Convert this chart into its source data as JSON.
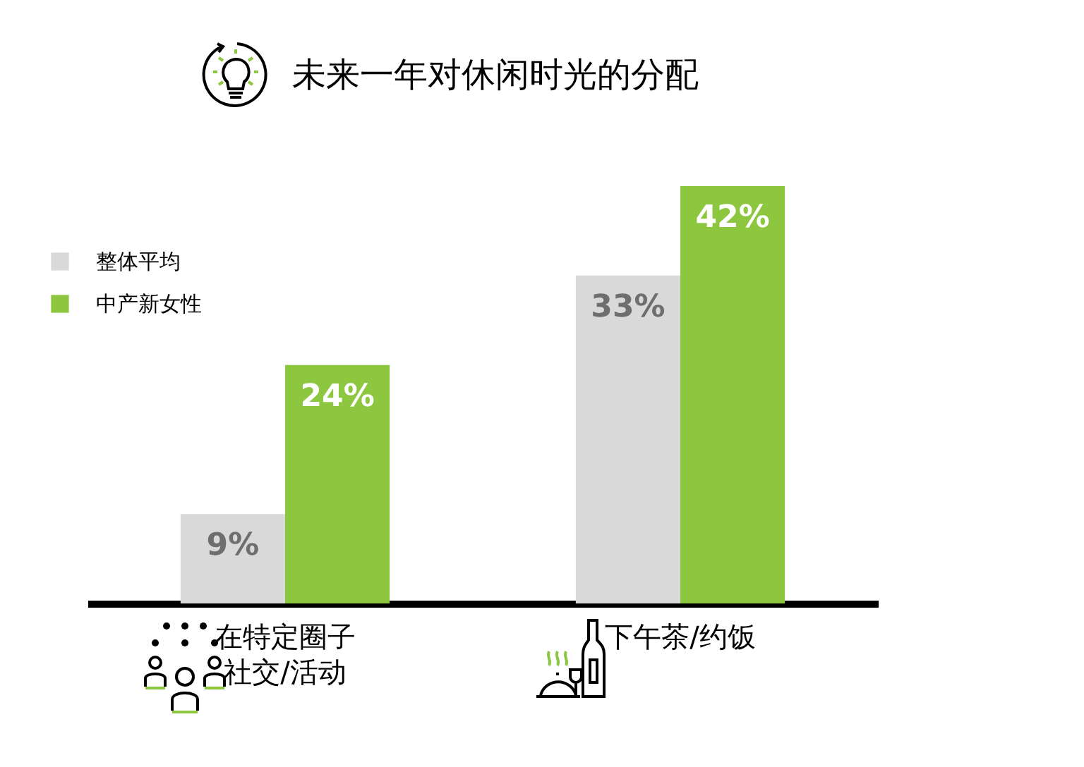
{
  "chart_data": {
    "type": "bar",
    "title": "未来一年对休闲时光的分配",
    "categories": [
      "在特定圈子社交/活动",
      "下午茶/约饭"
    ],
    "series": [
      {
        "name": "整体平均",
        "color": "#d9d9d9",
        "values": [
          9,
          33
        ],
        "value_labels": [
          "9%",
          "33%"
        ]
      },
      {
        "name": "中产新女性",
        "color": "#8dc63f",
        "values": [
          24,
          42
        ],
        "value_labels": [
          "24%",
          "42%"
        ]
      }
    ],
    "legend": "top left"
  }
}
